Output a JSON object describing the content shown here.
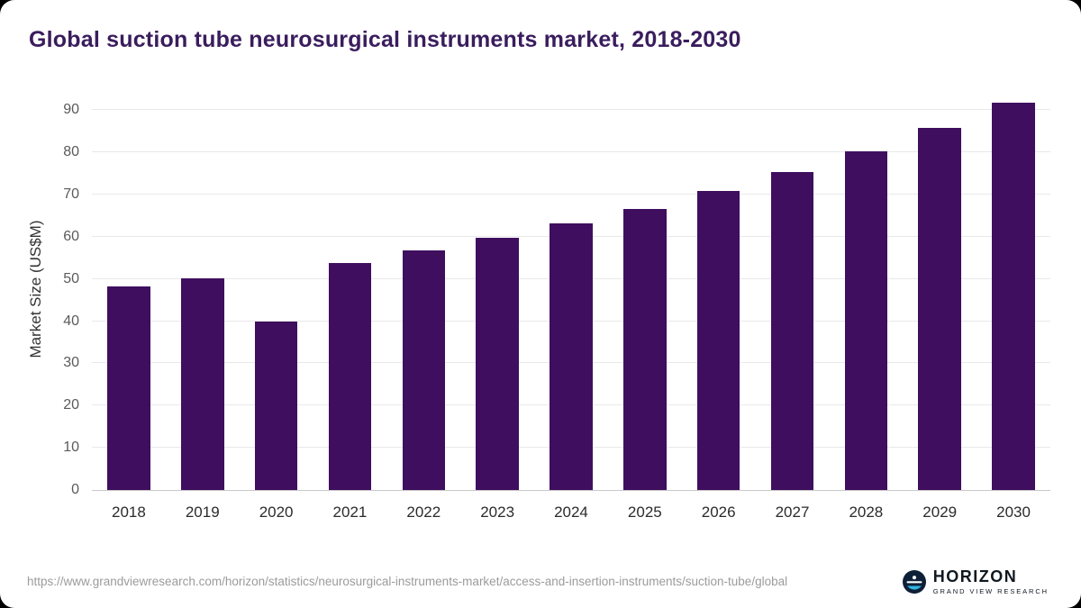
{
  "page": {
    "background_color": "#000000",
    "card_color": "#ffffff"
  },
  "header": {
    "title": "Global suction tube neurosurgical instruments market, 2018-2030",
    "title_color": "#3a1d5d"
  },
  "chart_data": {
    "type": "bar",
    "title": "Global suction tube neurosurgical instruments market, 2018-2030",
    "categories": [
      "2018",
      "2019",
      "2020",
      "2021",
      "2022",
      "2023",
      "2024",
      "2025",
      "2026",
      "2027",
      "2028",
      "2029",
      "2030"
    ],
    "values": [
      48.3,
      50.2,
      39.9,
      53.8,
      56.7,
      59.8,
      63.2,
      66.7,
      70.9,
      75.4,
      80.2,
      85.9,
      91.9
    ],
    "xlabel": "",
    "ylabel": "Market Size (US$M)",
    "ylim": [
      0,
      95
    ],
    "yticks": [
      0,
      10,
      20,
      30,
      40,
      50,
      60,
      70,
      80,
      90
    ],
    "grid": true,
    "legend": "none",
    "bar_color": "#3f0e5f"
  },
  "footer": {
    "source_url": "https://www.grandviewresearch.com/horizon/statistics/neurosurgical-instruments-market/access-and-insertion-instruments/suction-tube/global",
    "logo": {
      "name": "HORIZON",
      "subtitle": "GRAND VIEW RESEARCH",
      "icon": "horizon-globe-icon",
      "icon_color": "#0e2038",
      "icon_accent": "#2fb5e0"
    }
  }
}
